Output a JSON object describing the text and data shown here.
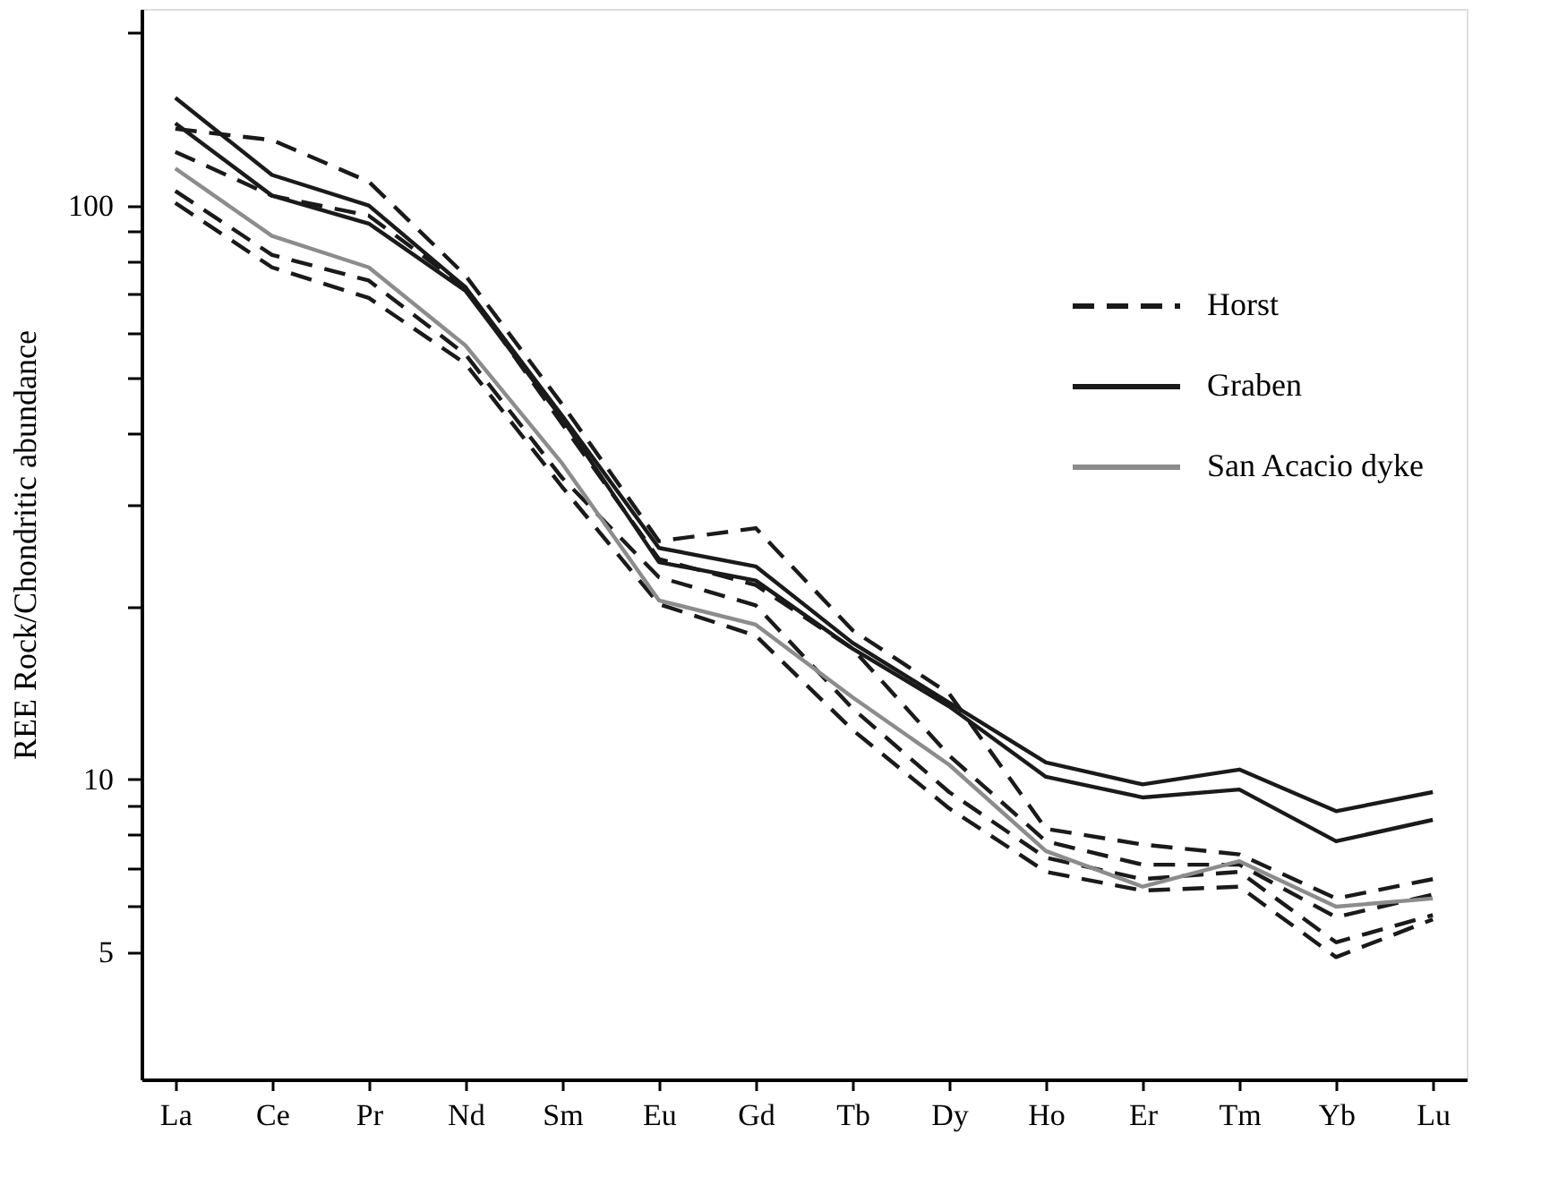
{
  "chart_data": {
    "type": "line",
    "ylabel": "REE Rock/Chondritic abundance",
    "categories": [
      "La",
      "Ce",
      "Pr",
      "Nd",
      "Sm",
      "Eu",
      "Gd",
      "Tb",
      "Dy",
      "Ho",
      "Er",
      "Tm",
      "Yb",
      "Lu"
    ],
    "series": [
      {
        "name": "Horst",
        "color": "#1a1a1a",
        "line_style": "dashed",
        "values": [
          136,
          130,
          110,
          75.5,
          45,
          26,
          27.4,
          18.2,
          14.1,
          8.2,
          7.7,
          7.4,
          6.2,
          6.7
        ]
      },
      {
        "color": "#1a1a1a",
        "line_style": "dashed",
        "values": [
          124,
          104,
          96,
          72,
          41.6,
          24.2,
          21.8,
          16.9,
          11,
          7.8,
          7.1,
          7.1,
          5.75,
          6.3
        ]
      },
      {
        "color": "#1a1a1a",
        "line_style": "dashed",
        "values": [
          106,
          82,
          74,
          55,
          33.5,
          22.5,
          20.1,
          13.3,
          9.5,
          7.3,
          6.7,
          6.9,
          5.2,
          5.8
        ]
      },
      {
        "color": "#1a1a1a",
        "line_style": "dashed",
        "values": [
          101,
          78,
          69,
          53,
          32.3,
          20.2,
          17.8,
          12.2,
          8.9,
          6.9,
          6.4,
          6.5,
          4.9,
          5.7
        ]
      },
      {
        "name": "Graben",
        "color": "#1a1a1a",
        "line_style": "solid",
        "values": [
          154,
          113,
          100,
          72,
          43,
          25.3,
          23.5,
          17.3,
          13.6,
          10.7,
          9.8,
          10.4,
          8.8,
          9.5
        ]
      },
      {
        "color": "#1a1a1a",
        "line_style": "solid",
        "values": [
          139,
          104,
          93,
          71,
          42.5,
          23.9,
          22.2,
          16.9,
          13.4,
          10.1,
          9.3,
          9.6,
          7.8,
          8.5
        ]
      },
      {
        "name": "San Acacio dyke",
        "color": "#8c8c8c",
        "line_style": "solid",
        "values": [
          116,
          88.5,
          78,
          57,
          35.5,
          20.5,
          18.6,
          13.9,
          10.6,
          7.5,
          6.5,
          7.2,
          6.0,
          6.2
        ]
      }
    ],
    "log": true,
    "ylim": [
      3,
      220
    ],
    "yticks": [
      5,
      10,
      100,
      {
        "value": 6,
        "label": null
      },
      {
        "value": 7,
        "label": null
      },
      {
        "value": 8,
        "label": null
      },
      {
        "value": 9,
        "label": null
      },
      {
        "value": 20,
        "label": null
      },
      {
        "value": 30,
        "label": null
      },
      {
        "value": 40,
        "label": null
      },
      {
        "value": 50,
        "label": null
      },
      {
        "value": 60,
        "label": null
      },
      {
        "value": 70,
        "label": null
      },
      {
        "value": 80,
        "label": null
      },
      {
        "value": 90,
        "label": null
      },
      {
        "value": 200,
        "label": null
      }
    ],
    "grid": false,
    "legend": "right",
    "marker": "none"
  }
}
